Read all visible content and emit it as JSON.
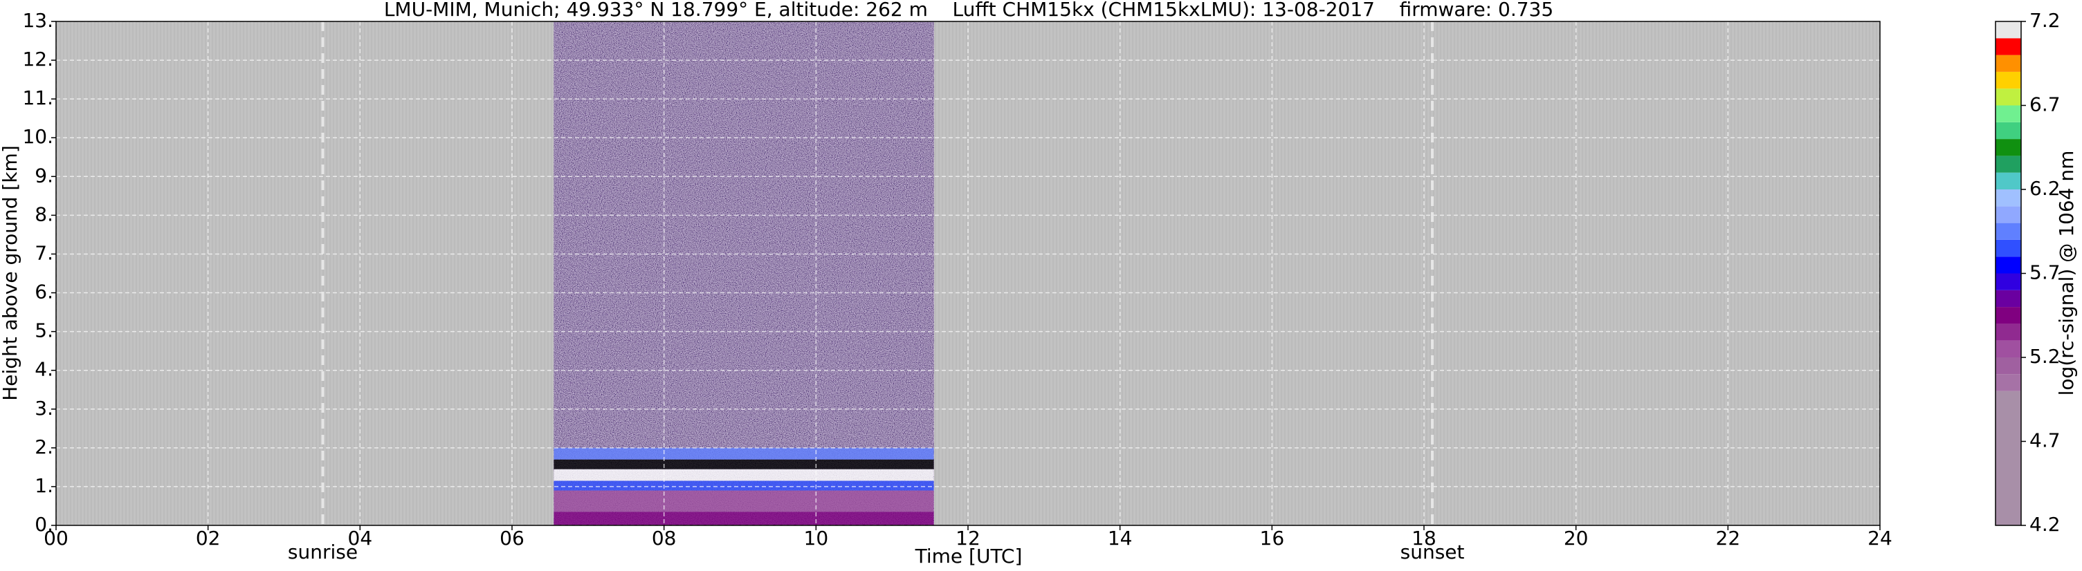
{
  "chart_data": {
    "type": "heatmap",
    "title": "LMU-MIM, Munich; 49.933° N 18.799° E, altitude: 262 m    Lufft CHM15kx (CHM15kxLMU): 13-08-2017    firmware: 0.735",
    "xlabel": "Time [UTC]",
    "ylabel": "Height above ground [km]",
    "xlim": [
      0,
      24
    ],
    "xticks": [
      {
        "value": 0,
        "label": "00"
      },
      {
        "value": 2,
        "label": "02"
      },
      {
        "value": 4,
        "label": "04"
      },
      {
        "value": 6,
        "label": "06"
      },
      {
        "value": 8,
        "label": "08"
      },
      10,
      12,
      14,
      16,
      18,
      20,
      22,
      24
    ],
    "ylim": [
      0,
      13
    ],
    "yticks": [
      {
        "value": 0,
        "label": "0."
      },
      {
        "value": 1,
        "label": "1."
      },
      {
        "value": 2,
        "label": "2."
      },
      {
        "value": 3,
        "label": "3."
      },
      {
        "value": 4,
        "label": "4."
      },
      {
        "value": 5,
        "label": "5."
      },
      {
        "value": 6,
        "label": "6."
      },
      {
        "value": 7,
        "label": "7."
      },
      {
        "value": 8,
        "label": "8."
      },
      {
        "value": 9,
        "label": "9."
      },
      {
        "value": 10,
        "label": "10."
      },
      {
        "value": 11,
        "label": "11."
      },
      {
        "value": 12,
        "label": "12."
      },
      {
        "value": 13,
        "label": "13."
      }
    ],
    "grid": true,
    "background_color": "#c0c0c0",
    "data_span": [
      6.55,
      11.55
    ],
    "layers": [
      {
        "y": [
          0,
          0.35
        ],
        "color": "#800080"
      },
      {
        "y": [
          0.35,
          0.9
        ],
        "color": "#a050a0"
      },
      {
        "y": [
          0.9,
          1.15
        ],
        "color": "#3050ff"
      },
      {
        "y": [
          1.15,
          1.45
        ],
        "color": "#ffffff"
      },
      {
        "y": [
          1.45,
          1.7
        ],
        "color": "#000000"
      },
      {
        "y": [
          1.7,
          2.0
        ],
        "color": "#6080ff"
      }
    ],
    "annotations": [
      {
        "label": "sunrise",
        "x": 3.51
      },
      {
        "label": "sunset",
        "x": 18.11
      }
    ],
    "colorbar": {
      "label": "log(rc-signal) @ 1064 nm",
      "lim": [
        4.2,
        7.2
      ],
      "ticks": [
        4.2,
        4.7,
        5.2,
        5.7,
        6.2,
        6.7,
        7.2
      ],
      "bounds": [
        4.2,
        5.0,
        5.1,
        5.2,
        5.3,
        5.4,
        5.5,
        5.6,
        5.7,
        5.8,
        5.9,
        6.0,
        6.1,
        6.2,
        6.3,
        6.4,
        6.5,
        6.6,
        6.7,
        6.8,
        6.9,
        7.0,
        7.1,
        7.2
      ],
      "colors": [
        "#a88fa8",
        "#a672a6",
        "#a060a0",
        "#a050a0",
        "#902a90",
        "#800080",
        "#6a00a0",
        "#3000e0",
        "#0000ff",
        "#3050ff",
        "#6080ff",
        "#90a8ff",
        "#a0c0ff",
        "#50c8c8",
        "#20a060",
        "#109010",
        "#40d080",
        "#70f090",
        "#c0f040",
        "#ffd000",
        "#ff9000",
        "#ff0000",
        "#e8e8e8"
      ]
    }
  }
}
